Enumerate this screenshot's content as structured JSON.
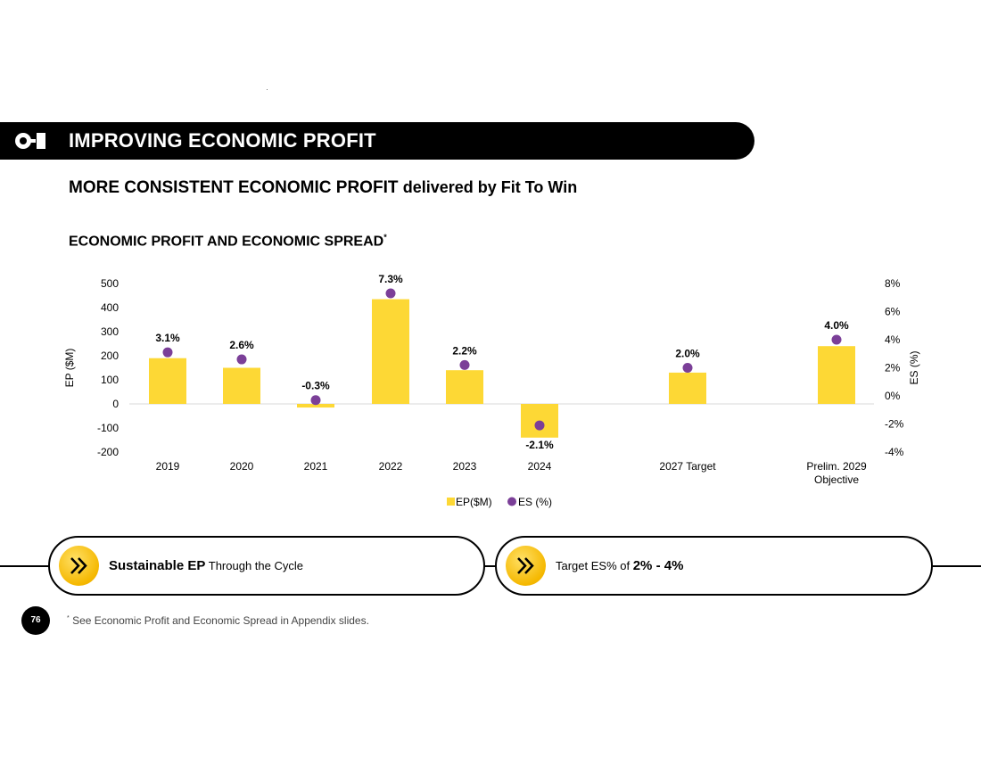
{
  "header": {
    "title": "IMPROVING ECONOMIC PROFIT",
    "logo": "o-i-logo"
  },
  "subtitle": {
    "bold": "MORE CONSISTENT ECONOMIC PROFIT",
    "rest": "delivered by Fit To Win"
  },
  "chart_title": {
    "text": "ECONOMIC PROFIT AND ECONOMIC SPREAD",
    "marker": "*"
  },
  "chart_data": {
    "type": "bar",
    "categories": [
      "2019",
      "2020",
      "2021",
      "2022",
      "2023",
      "2024",
      "2027 Target",
      "Prelim. 2029 Objective"
    ],
    "category_lines": [
      [
        "2019"
      ],
      [
        "2020"
      ],
      [
        "2021"
      ],
      [
        "2022"
      ],
      [
        "2023"
      ],
      [
        "2024"
      ],
      [
        "2027 Target"
      ],
      [
        "Prelim. 2029",
        "Objective"
      ]
    ],
    "series": [
      {
        "name": "EP($M)",
        "axis": "left",
        "kind": "bar",
        "color": "#fdd835",
        "values": [
          190,
          150,
          -15,
          435,
          140,
          -140,
          130,
          240
        ]
      },
      {
        "name": "ES (%)",
        "axis": "right",
        "kind": "scatter",
        "color": "#7b3f98",
        "values": [
          3.1,
          2.6,
          -0.3,
          7.3,
          2.2,
          -2.1,
          2.0,
          4.0
        ],
        "labels": [
          "3.1%",
          "2.6%",
          "-0.3%",
          "7.3%",
          "2.2%",
          "-2.1%",
          "2.0%",
          "4.0%"
        ]
      }
    ],
    "y_left": {
      "label": "EP ($M)",
      "range": [
        -200,
        500
      ],
      "ticks": [
        500,
        400,
        300,
        200,
        100,
        0,
        -100,
        -200
      ]
    },
    "y_right": {
      "label": "ES (%)",
      "range": [
        -4,
        8
      ],
      "ticks": [
        "8%",
        "6%",
        "4%",
        "2%",
        "0%",
        "-2%",
        "-4%"
      ],
      "tick_values": [
        8,
        6,
        4,
        2,
        0,
        -2,
        -4
      ]
    },
    "legend": [
      {
        "label": "EP($M)",
        "shape": "square",
        "color": "#fdd835"
      },
      {
        "label": "ES (%)",
        "shape": "circle",
        "color": "#7b3f98"
      }
    ],
    "legend_position": "bottom-center"
  },
  "callouts": [
    {
      "icon": "double-chevron-right-icon",
      "bold": "Sustainable EP",
      "text": " Through the Cycle"
    },
    {
      "icon": "double-chevron-right-icon",
      "prefix": "Target ES% of ",
      "bold": "2% - 4%"
    }
  ],
  "footer": {
    "page_number": "76",
    "footnote_marker": "*",
    "footnote": " See Economic Profit and Economic Spread in Appendix slides."
  }
}
